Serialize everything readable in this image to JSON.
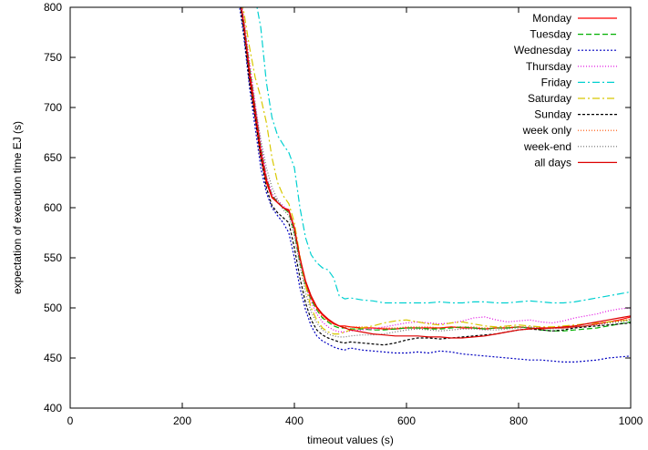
{
  "chart_data": {
    "type": "line",
    "title": "",
    "xlabel": "timeout values (s)",
    "ylabel": "expectation of execution time EJ (s)",
    "xlim": [
      0,
      1000
    ],
    "ylim": [
      400,
      800
    ],
    "xticks": [
      0,
      200,
      400,
      600,
      800,
      1000
    ],
    "yticks": [
      400,
      450,
      500,
      550,
      600,
      650,
      700,
      750,
      800
    ],
    "grid": false,
    "legend_position": "top-right",
    "series": [
      {
        "name": "Monday",
        "color": "#ff0000",
        "dash": "solid",
        "x": [
          300,
          310,
          320,
          330,
          340,
          350,
          360,
          370,
          380,
          390,
          400,
          410,
          420,
          430,
          440,
          450,
          460,
          470,
          480,
          490,
          500,
          520,
          540,
          560,
          580,
          600,
          620,
          640,
          660,
          680,
          700,
          720,
          740,
          760,
          780,
          800,
          820,
          840,
          860,
          880,
          900,
          920,
          940,
          960,
          980,
          1000
        ],
        "y": [
          820,
          780,
          730,
          690,
          650,
          625,
          610,
          605,
          600,
          598,
          580,
          550,
          525,
          510,
          500,
          493,
          488,
          484,
          482,
          482,
          481,
          480,
          480,
          479,
          479,
          480,
          480,
          480,
          480,
          481,
          480,
          480,
          479,
          480,
          480,
          481,
          480,
          479,
          480,
          480,
          481,
          482,
          484,
          486,
          488,
          491
        ]
      },
      {
        "name": "Tuesday",
        "color": "#00b000",
        "dash": "6,3",
        "x": [
          300,
          310,
          320,
          330,
          340,
          350,
          360,
          370,
          380,
          390,
          400,
          410,
          420,
          430,
          440,
          450,
          460,
          470,
          480,
          490,
          500,
          520,
          540,
          560,
          580,
          600,
          620,
          640,
          660,
          680,
          700,
          720,
          740,
          760,
          780,
          800,
          820,
          840,
          860,
          880,
          900,
          920,
          940,
          960,
          980,
          1000
        ],
        "y": [
          820,
          785,
          740,
          700,
          660,
          630,
          612,
          606,
          600,
          595,
          575,
          545,
          522,
          508,
          498,
          490,
          486,
          482,
          480,
          480,
          479,
          479,
          478,
          478,
          479,
          480,
          480,
          479,
          479,
          480,
          481,
          480,
          479,
          480,
          480,
          481,
          480,
          478,
          477,
          477,
          478,
          479,
          480,
          482,
          484,
          486
        ]
      },
      {
        "name": "Wednesday",
        "color": "#0000c0",
        "dash": "2,2",
        "x": [
          300,
          310,
          320,
          330,
          340,
          350,
          360,
          370,
          380,
          390,
          400,
          410,
          420,
          430,
          440,
          450,
          460,
          470,
          480,
          490,
          500,
          520,
          540,
          560,
          580,
          600,
          620,
          640,
          660,
          680,
          700,
          720,
          740,
          760,
          780,
          800,
          820,
          840,
          860,
          880,
          900,
          920,
          940,
          960,
          980,
          1000
        ],
        "y": [
          810,
          770,
          720,
          680,
          640,
          615,
          600,
          592,
          585,
          575,
          550,
          520,
          498,
          482,
          472,
          467,
          464,
          461,
          459,
          458,
          460,
          458,
          457,
          456,
          455,
          455,
          456,
          455,
          457,
          456,
          454,
          453,
          452,
          451,
          450,
          449,
          448,
          448,
          447,
          446,
          446,
          447,
          448,
          450,
          451,
          452
        ]
      },
      {
        "name": "Thursday",
        "color": "#e000e0",
        "dash": "1,2",
        "x": [
          300,
          310,
          320,
          330,
          340,
          350,
          360,
          370,
          380,
          390,
          400,
          410,
          420,
          430,
          440,
          450,
          460,
          470,
          480,
          490,
          500,
          520,
          540,
          560,
          580,
          600,
          620,
          640,
          660,
          680,
          700,
          720,
          740,
          760,
          780,
          800,
          820,
          840,
          860,
          880,
          900,
          920,
          940,
          960,
          980,
          1000
        ],
        "y": [
          820,
          790,
          745,
          705,
          665,
          632,
          614,
          607,
          602,
          596,
          578,
          548,
          523,
          506,
          494,
          486,
          481,
          478,
          476,
          476,
          477,
          478,
          479,
          481,
          483,
          485,
          486,
          485,
          484,
          485,
          487,
          490,
          491,
          488,
          486,
          487,
          488,
          486,
          485,
          487,
          490,
          492,
          494,
          497,
          499,
          500
        ]
      },
      {
        "name": "Friday",
        "color": "#00d0d0",
        "dash": "8,3,2,3",
        "x": [
          330,
          340,
          350,
          360,
          370,
          380,
          390,
          400,
          410,
          420,
          430,
          440,
          450,
          460,
          470,
          480,
          490,
          500,
          520,
          540,
          560,
          580,
          600,
          620,
          640,
          660,
          680,
          700,
          720,
          740,
          760,
          780,
          800,
          820,
          840,
          860,
          880,
          900,
          920,
          940,
          960,
          980,
          1000
        ],
        "y": [
          810,
          780,
          725,
          690,
          672,
          663,
          655,
          640,
          600,
          570,
          553,
          545,
          540,
          538,
          530,
          512,
          509,
          510,
          508,
          507,
          505,
          505,
          505,
          505,
          505,
          506,
          505,
          505,
          506,
          506,
          505,
          505,
          506,
          507,
          506,
          505,
          505,
          506,
          508,
          510,
          512,
          514,
          516
        ]
      },
      {
        "name": "Saturday",
        "color": "#d8c800",
        "dash": "8,3,2,3",
        "x": [
          300,
          310,
          320,
          330,
          340,
          350,
          360,
          370,
          380,
          390,
          400,
          410,
          420,
          430,
          440,
          450,
          460,
          470,
          480,
          490,
          500,
          520,
          540,
          560,
          580,
          600,
          620,
          640,
          660,
          680,
          700,
          720,
          740,
          760,
          780,
          800,
          820,
          840,
          860,
          880,
          900,
          920,
          940,
          960,
          980,
          1000
        ],
        "y": [
          820,
          795,
          760,
          730,
          710,
          685,
          650,
          625,
          612,
          604,
          585,
          552,
          522,
          500,
          488,
          480,
          476,
          474,
          474,
          476,
          478,
          480,
          482,
          485,
          487,
          488,
          486,
          484,
          483,
          485,
          486,
          484,
          482,
          481,
          482,
          483,
          482,
          481,
          481,
          482,
          483,
          484,
          485,
          486,
          487,
          488
        ]
      },
      {
        "name": "Sunday",
        "color": "#000000",
        "dash": "3,2",
        "x": [
          300,
          310,
          320,
          330,
          340,
          350,
          360,
          370,
          380,
          390,
          400,
          410,
          420,
          430,
          440,
          450,
          460,
          470,
          480,
          490,
          500,
          520,
          540,
          560,
          580,
          600,
          620,
          640,
          660,
          680,
          700,
          720,
          740,
          760,
          780,
          800,
          820,
          840,
          860,
          880,
          900,
          920,
          940,
          960,
          980,
          1000
        ],
        "y": [
          815,
          775,
          725,
          690,
          650,
          620,
          602,
          595,
          590,
          585,
          560,
          530,
          505,
          488,
          478,
          473,
          470,
          468,
          466,
          465,
          466,
          465,
          464,
          463,
          465,
          468,
          470,
          470,
          469,
          470,
          471,
          472,
          473,
          474,
          476,
          478,
          479,
          478,
          477,
          478,
          480,
          481,
          482,
          483,
          484,
          485
        ]
      },
      {
        "name": "week only",
        "color": "#ff5000",
        "dash": "1,2",
        "x": [
          300,
          310,
          320,
          330,
          340,
          350,
          360,
          370,
          380,
          390,
          400,
          410,
          420,
          430,
          440,
          450,
          460,
          470,
          480,
          490,
          500,
          520,
          540,
          560,
          580,
          600,
          620,
          640,
          660,
          680,
          700,
          720,
          740,
          760,
          780,
          800,
          820,
          840,
          860,
          880,
          900,
          920,
          940,
          960,
          980,
          1000
        ],
        "y": [
          820,
          785,
          738,
          698,
          658,
          628,
          611,
          605,
          600,
          596,
          578,
          548,
          524,
          509,
          499,
          491,
          487,
          484,
          482,
          481,
          481,
          481,
          480,
          480,
          480,
          481,
          481,
          481,
          480,
          481,
          481,
          481,
          480,
          480,
          481,
          481,
          481,
          480,
          480,
          480,
          481,
          482,
          483,
          485,
          487,
          489
        ]
      },
      {
        "name": "week-end",
        "color": "#707070",
        "dash": "1,2",
        "x": [
          300,
          310,
          320,
          330,
          340,
          350,
          360,
          370,
          380,
          390,
          400,
          410,
          420,
          430,
          440,
          450,
          460,
          470,
          480,
          490,
          500,
          520,
          540,
          560,
          580,
          600,
          620,
          640,
          660,
          680,
          700,
          720,
          740,
          760,
          780,
          800,
          820,
          840,
          860,
          880,
          900,
          920,
          940,
          960,
          980,
          1000
        ],
        "y": [
          818,
          780,
          735,
          700,
          668,
          640,
          620,
          608,
          598,
          592,
          572,
          542,
          515,
          496,
          485,
          478,
          474,
          472,
          471,
          471,
          472,
          473,
          473,
          474,
          476,
          478,
          479,
          478,
          477,
          478,
          479,
          479,
          478,
          478,
          479,
          480,
          481,
          480,
          479,
          480,
          481,
          482,
          483,
          485,
          486,
          488
        ]
      },
      {
        "name": "all days",
        "color": "#dd0000",
        "dash": "solid",
        "x": [
          300,
          310,
          320,
          330,
          340,
          350,
          360,
          370,
          380,
          390,
          400,
          410,
          420,
          430,
          440,
          450,
          460,
          470,
          480,
          490,
          500,
          520,
          540,
          560,
          580,
          600,
          620,
          640,
          660,
          680,
          700,
          720,
          740,
          760,
          780,
          800,
          820,
          840,
          860,
          880,
          900,
          920,
          940,
          960,
          980,
          1000
        ],
        "y": [
          820,
          783,
          735,
          697,
          657,
          628,
          611,
          605,
          600,
          597,
          580,
          550,
          527,
          512,
          501,
          494,
          489,
          485,
          482,
          480,
          478,
          476,
          474,
          473,
          472,
          472,
          472,
          471,
          471,
          470,
          470,
          471,
          472,
          474,
          476,
          478,
          479,
          480,
          480,
          481,
          482,
          484,
          486,
          488,
          490,
          492
        ]
      }
    ]
  }
}
